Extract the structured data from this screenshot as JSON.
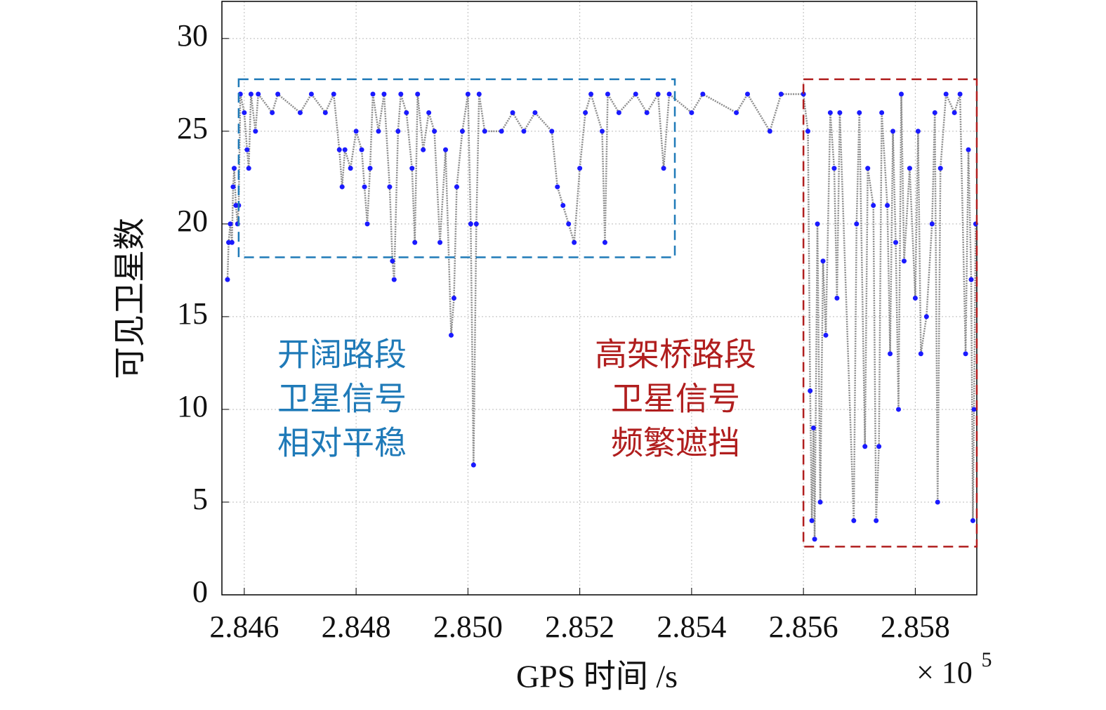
{
  "chart_data": {
    "type": "line",
    "x_label": "GPS 时间 /s",
    "y_label": "可见卫星数",
    "x_multiplier": {
      "base": "× 10",
      "exponent": "5"
    },
    "xlim": [
      2.8456,
      2.8591
    ],
    "ylim": [
      0,
      32
    ],
    "xticks": [
      {
        "value": 2.846,
        "label": "2.846"
      },
      {
        "value": 2.848,
        "label": "2.848"
      },
      {
        "value": 2.85,
        "label": "2.850"
      },
      {
        "value": 2.852,
        "label": "2.852"
      },
      {
        "value": 2.854,
        "label": "2.854"
      },
      {
        "value": 2.856,
        "label": "2.856"
      },
      {
        "value": 2.858,
        "label": "2.858"
      }
    ],
    "yticks": [
      0,
      5,
      10,
      15,
      20,
      25,
      30
    ],
    "grid": true,
    "line_color": "#8c8c8c",
    "marker_color": "#1a1aff",
    "x": [
      2.8457,
      2.84572,
      2.84575,
      2.84578,
      2.8458,
      2.84582,
      2.84585,
      2.84588,
      2.8459,
      2.84593,
      2.846,
      2.84605,
      2.84608,
      2.84612,
      2.8462,
      2.84625,
      2.8465,
      2.8466,
      2.847,
      2.8472,
      2.84745,
      2.8476,
      2.8477,
      2.84775,
      2.8478,
      2.8479,
      2.848,
      2.8481,
      2.84815,
      2.8482,
      2.84825,
      2.8483,
      2.8484,
      2.8485,
      2.8486,
      2.84865,
      2.84868,
      2.84875,
      2.8488,
      2.8489,
      2.849,
      2.84905,
      2.8491,
      2.8492,
      2.8493,
      2.8494,
      2.8495,
      2.8496,
      2.8497,
      2.84975,
      2.8498,
      2.8499,
      2.85,
      2.85005,
      2.8501,
      2.85015,
      2.8502,
      2.8503,
      2.8506,
      2.8508,
      2.851,
      2.8512,
      2.8515,
      2.8516,
      2.8517,
      2.8518,
      2.8519,
      2.852,
      2.8521,
      2.8522,
      2.8524,
      2.85245,
      2.8525,
      2.8527,
      2.853,
      2.8532,
      2.8534,
      2.8535,
      2.8536,
      2.854,
      2.8542,
      2.8548,
      2.855,
      2.8554,
      2.8556,
      2.856,
      2.85608,
      2.85612,
      2.85615,
      2.85618,
      2.8562,
      2.85625,
      2.8563,
      2.85635,
      2.8564,
      2.85648,
      2.85655,
      2.8566,
      2.85665,
      2.8569,
      2.85695,
      2.857,
      2.8571,
      2.85715,
      2.85725,
      2.8573,
      2.85735,
      2.8574,
      2.8575,
      2.85755,
      2.8576,
      2.85765,
      2.8577,
      2.85775,
      2.8578,
      2.8579,
      2.858,
      2.85805,
      2.8581,
      2.8582,
      2.8583,
      2.85835,
      2.8584,
      2.85845,
      2.85855,
      2.8587,
      2.8588,
      2.8589,
      2.85895,
      2.859,
      2.85903,
      2.85905,
      2.85908
    ],
    "values": [
      17,
      19,
      20,
      19,
      22,
      23,
      21,
      20,
      21,
      27,
      26,
      24,
      23,
      27,
      25,
      27,
      26,
      27,
      26,
      27,
      26,
      27,
      24,
      22,
      24,
      23,
      25,
      24,
      22,
      20,
      23,
      27,
      25,
      27,
      22,
      18,
      17,
      25,
      27,
      26,
      23,
      19,
      27,
      24,
      26,
      25,
      19,
      24,
      14,
      16,
      22,
      25,
      27,
      20,
      7,
      20,
      27,
      25,
      25,
      26,
      25,
      26,
      25,
      22,
      21,
      20,
      19,
      23,
      26,
      27,
      25,
      19,
      27,
      26,
      27,
      26,
      27,
      23,
      27,
      26,
      27,
      26,
      27,
      25,
      27,
      27,
      25,
      11,
      4,
      9,
      3,
      20,
      5,
      18,
      14,
      26,
      23,
      16,
      26,
      4,
      20,
      26,
      8,
      23,
      21,
      4,
      8,
      26,
      21,
      13,
      25,
      19,
      10,
      27,
      18,
      23,
      16,
      25,
      13,
      15,
      20,
      26,
      5,
      23,
      27,
      26,
      27,
      13,
      24,
      17,
      4,
      10,
      20
    ],
    "annotations": [
      {
        "color": "#1f7ab8",
        "box_x": [
          2.8459,
          2.8537
        ],
        "box_y": [
          18.2,
          27.8
        ],
        "lines": [
          "开阔路段",
          "卫星信号",
          "相对平稳"
        ]
      },
      {
        "color": "#b01e1e",
        "box_x": [
          2.856,
          2.8591
        ],
        "box_y": [
          2.6,
          27.8
        ],
        "lines": [
          "高架桥路段",
          "卫星信号",
          "频繁遮挡"
        ]
      }
    ]
  }
}
